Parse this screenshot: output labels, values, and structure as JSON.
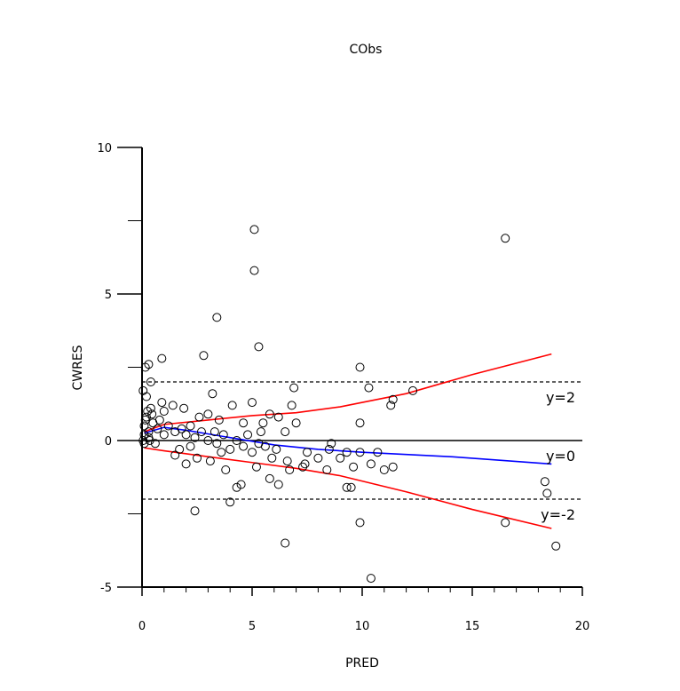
{
  "chart_data": {
    "type": "scatter",
    "title": "CObs",
    "xlabel": "PRED",
    "ylabel": "CWRES",
    "xlim": [
      0,
      20
    ],
    "ylim": [
      -5,
      10
    ],
    "x_ticks": [
      0,
      5,
      10,
      15,
      20
    ],
    "y_ticks": [
      -5,
      0,
      5,
      10
    ],
    "x_tick_labels": [
      "0",
      "5",
      "10",
      "15",
      "20"
    ],
    "y_tick_labels": [
      "-5",
      "0",
      "5",
      "10"
    ],
    "reference_lines": [
      {
        "y": 2,
        "label": "y=2",
        "style": "dashed"
      },
      {
        "y": 0,
        "label": "y=0",
        "style": "solid"
      },
      {
        "y": -2,
        "label": "y=-2",
        "style": "dashed"
      }
    ],
    "colors": {
      "points": "#000000",
      "mean_smooth": "#0000ff",
      "bound_smooth": "#ff0000"
    },
    "points": [
      [
        5.1,
        7.2
      ],
      [
        16.5,
        6.9
      ],
      [
        5.1,
        5.8
      ],
      [
        3.4,
        4.2
      ],
      [
        5.3,
        3.2
      ],
      [
        2.8,
        2.9
      ],
      [
        0.9,
        2.8
      ],
      [
        0.3,
        2.6
      ],
      [
        0.15,
        2.5
      ],
      [
        9.9,
        2.5
      ],
      [
        0.4,
        2.0
      ],
      [
        6.9,
        1.8
      ],
      [
        10.3,
        1.8
      ],
      [
        0.05,
        1.7
      ],
      [
        0.2,
        1.5
      ],
      [
        3.2,
        1.6
      ],
      [
        12.3,
        1.7
      ],
      [
        11.4,
        1.4
      ],
      [
        11.3,
        1.2
      ],
      [
        5.0,
        1.3
      ],
      [
        0.9,
        1.3
      ],
      [
        1.4,
        1.2
      ],
      [
        4.1,
        1.2
      ],
      [
        6.8,
        1.2
      ],
      [
        0.4,
        1.1
      ],
      [
        1.0,
        1.0
      ],
      [
        1.9,
        1.1
      ],
      [
        2.6,
        0.8
      ],
      [
        3.0,
        0.9
      ],
      [
        3.5,
        0.7
      ],
      [
        5.8,
        0.9
      ],
      [
        6.2,
        0.8
      ],
      [
        7.0,
        0.6
      ],
      [
        9.9,
        0.6
      ],
      [
        4.6,
        0.6
      ],
      [
        5.5,
        0.6
      ],
      [
        6.5,
        0.3
      ],
      [
        3.3,
        0.3
      ],
      [
        0.1,
        0.5
      ],
      [
        0.2,
        0.8
      ],
      [
        0.3,
        0.3
      ],
      [
        0.1,
        0.2
      ],
      [
        0.05,
        0.0
      ],
      [
        0.1,
        -0.1
      ],
      [
        0.3,
        0.1
      ],
      [
        0.5,
        0.6
      ],
      [
        0.7,
        0.4
      ],
      [
        0.8,
        0.7
      ],
      [
        1.2,
        0.5
      ],
      [
        1.5,
        0.3
      ],
      [
        1.8,
        0.4
      ],
      [
        2.0,
        0.2
      ],
      [
        2.2,
        0.5
      ],
      [
        2.4,
        0.1
      ],
      [
        2.7,
        0.3
      ],
      [
        3.0,
        0.0
      ],
      [
        3.4,
        -0.1
      ],
      [
        3.7,
        0.2
      ],
      [
        4.0,
        -0.3
      ],
      [
        4.3,
        0.0
      ],
      [
        4.6,
        -0.2
      ],
      [
        5.0,
        -0.4
      ],
      [
        5.3,
        -0.1
      ],
      [
        5.6,
        -0.2
      ],
      [
        5.9,
        -0.6
      ],
      [
        6.1,
        -0.3
      ],
      [
        6.6,
        -0.7
      ],
      [
        7.3,
        -0.9
      ],
      [
        7.5,
        -0.4
      ],
      [
        8.0,
        -0.6
      ],
      [
        8.5,
        -0.3
      ],
      [
        8.6,
        -0.1
      ],
      [
        9.0,
        -0.6
      ],
      [
        9.3,
        -0.4
      ],
      [
        9.6,
        -0.9
      ],
      [
        9.9,
        -0.4
      ],
      [
        10.4,
        -0.8
      ],
      [
        11.0,
        -1.0
      ],
      [
        11.4,
        -0.9
      ],
      [
        10.7,
        -0.4
      ],
      [
        1.5,
        -0.5
      ],
      [
        2.0,
        -0.8
      ],
      [
        2.5,
        -0.6
      ],
      [
        3.1,
        -0.7
      ],
      [
        3.8,
        -1.0
      ],
      [
        4.3,
        -1.6
      ],
      [
        4.5,
        -1.5
      ],
      [
        5.2,
        -0.9
      ],
      [
        5.8,
        -1.3
      ],
      [
        6.2,
        -1.5
      ],
      [
        6.7,
        -1.0
      ],
      [
        7.4,
        -0.8
      ],
      [
        8.4,
        -1.0
      ],
      [
        9.3,
        -1.6
      ],
      [
        9.5,
        -1.6
      ],
      [
        4.0,
        -2.1
      ],
      [
        2.4,
        -2.4
      ],
      [
        9.9,
        -2.8
      ],
      [
        6.5,
        -3.5
      ],
      [
        16.5,
        -2.8
      ],
      [
        18.3,
        -1.4
      ],
      [
        18.4,
        -1.8
      ],
      [
        18.8,
        -3.6
      ],
      [
        10.4,
        -4.7
      ],
      [
        1.0,
        0.2
      ],
      [
        0.6,
        -0.1
      ],
      [
        1.7,
        -0.3
      ],
      [
        2.2,
        -0.2
      ],
      [
        3.6,
        -0.4
      ],
      [
        4.8,
        0.2
      ],
      [
        5.4,
        0.3
      ],
      [
        0.35,
        0.0
      ],
      [
        0.45,
        0.9
      ],
      [
        0.25,
        1.0
      ],
      [
        0.15,
        0.7
      ]
    ],
    "mean_line": [
      [
        0.1,
        0.25
      ],
      [
        1.0,
        0.45
      ],
      [
        2.0,
        0.35
      ],
      [
        4.0,
        0.1
      ],
      [
        6.0,
        -0.15
      ],
      [
        8.0,
        -0.3
      ],
      [
        10.0,
        -0.4
      ],
      [
        14.0,
        -0.55
      ],
      [
        18.6,
        -0.8
      ]
    ],
    "upper_line": [
      [
        0.1,
        0.3
      ],
      [
        1.0,
        0.55
      ],
      [
        3.0,
        0.7
      ],
      [
        5.0,
        0.85
      ],
      [
        7.0,
        0.95
      ],
      [
        9.0,
        1.15
      ],
      [
        12.0,
        1.6
      ],
      [
        15.0,
        2.25
      ],
      [
        18.6,
        2.95
      ]
    ],
    "lower_line": [
      [
        0.1,
        -0.25
      ],
      [
        1.0,
        -0.35
      ],
      [
        3.0,
        -0.55
      ],
      [
        5.0,
        -0.75
      ],
      [
        7.0,
        -0.95
      ],
      [
        9.0,
        -1.2
      ],
      [
        12.0,
        -1.75
      ],
      [
        15.0,
        -2.35
      ],
      [
        18.6,
        -3.0
      ]
    ]
  }
}
